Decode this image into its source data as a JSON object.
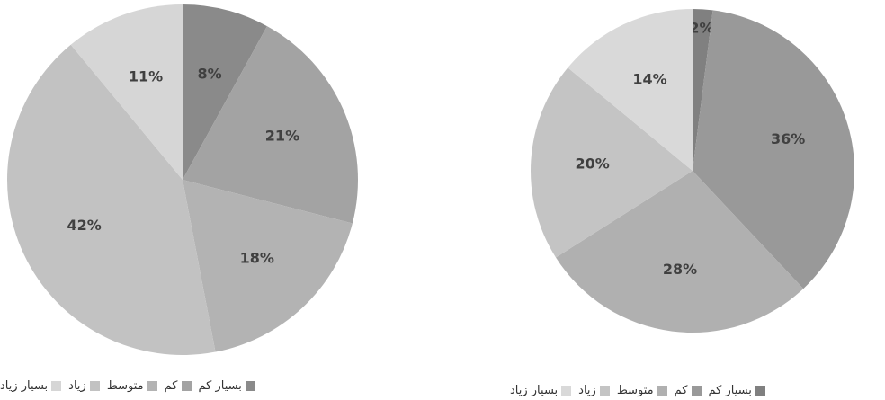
{
  "chart_data": [
    {
      "type": "pie",
      "categories": [
        "بسیار کم",
        "کم",
        "متوسط",
        "زیاد",
        "بسیار زیاد"
      ],
      "values": [
        8,
        21,
        18,
        42,
        11
      ],
      "value_labels": [
        "8%",
        "21%",
        "18%",
        "42%",
        "11%"
      ],
      "colors": [
        "#8a8a8a",
        "#a3a3a3",
        "#b3b3b3",
        "#c2c2c2",
        "#d6d6d6"
      ]
    },
    {
      "type": "pie",
      "categories": [
        "بسیار کم",
        "کم",
        "متوسط",
        "زیاد",
        "بسیار زیاد"
      ],
      "values": [
        2,
        36,
        28,
        20,
        14
      ],
      "value_labels": [
        "2%",
        "36%",
        "28%",
        "20%",
        "14%"
      ],
      "colors": [
        "#808080",
        "#999999",
        "#b0b0b0",
        "#c4c4c4",
        "#d9d9d9"
      ]
    }
  ]
}
